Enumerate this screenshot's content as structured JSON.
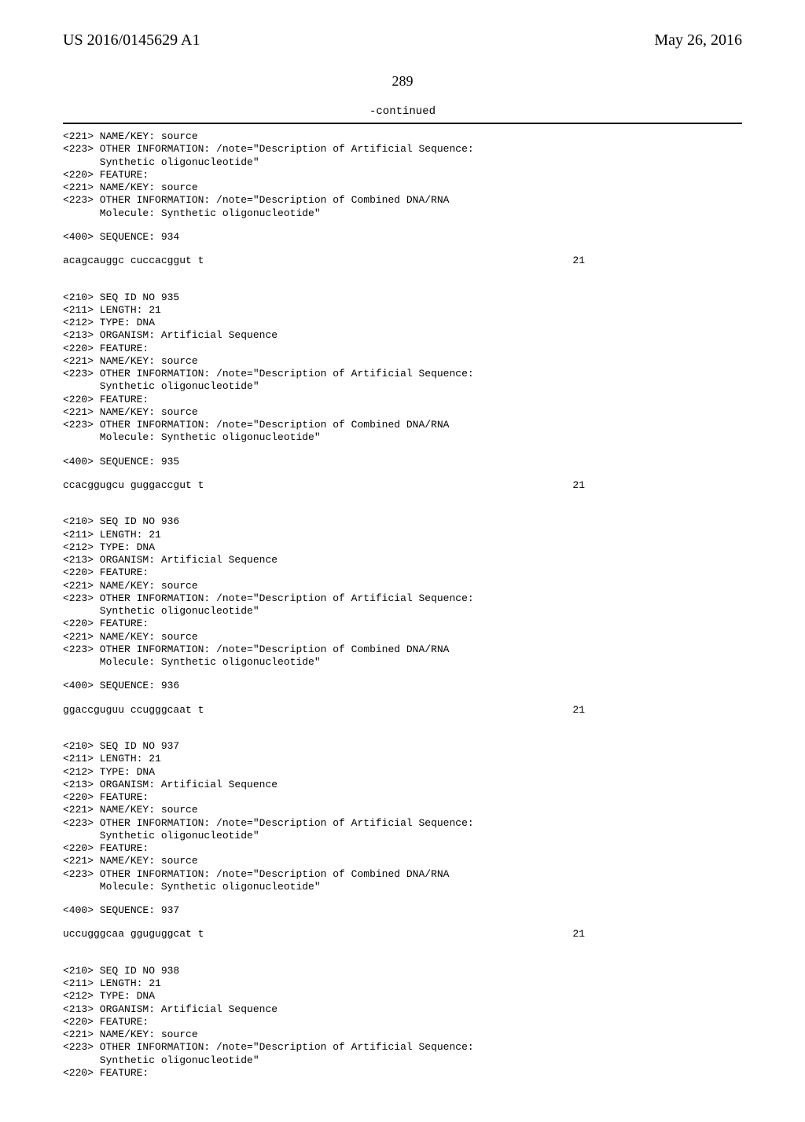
{
  "header": {
    "left": "US 2016/0145629 A1",
    "right": "May 26, 2016"
  },
  "page_number": "289",
  "continued": "-continued",
  "blocks": [
    {
      "lines": [
        "<221> NAME/KEY: source",
        "<223> OTHER INFORMATION: /note=\"Description of Artificial Sequence:",
        "      Synthetic oligonucleotide\"",
        "<220> FEATURE:",
        "<221> NAME/KEY: source",
        "<223> OTHER INFORMATION: /note=\"Description of Combined DNA/RNA",
        "      Molecule: Synthetic oligonucleotide\""
      ]
    },
    {
      "lines": [
        "<400> SEQUENCE: 934"
      ]
    },
    {
      "seq": {
        "text": "acagcauggc cuccacggut t",
        "number": "21"
      }
    },
    {
      "lines": [
        "",
        "<210> SEQ ID NO 935",
        "<211> LENGTH: 21",
        "<212> TYPE: DNA",
        "<213> ORGANISM: Artificial Sequence",
        "<220> FEATURE:",
        "<221> NAME/KEY: source",
        "<223> OTHER INFORMATION: /note=\"Description of Artificial Sequence:",
        "      Synthetic oligonucleotide\"",
        "<220> FEATURE:",
        "<221> NAME/KEY: source",
        "<223> OTHER INFORMATION: /note=\"Description of Combined DNA/RNA",
        "      Molecule: Synthetic oligonucleotide\""
      ]
    },
    {
      "lines": [
        "<400> SEQUENCE: 935"
      ]
    },
    {
      "seq": {
        "text": "ccacggugcu guggaccgut t",
        "number": "21"
      }
    },
    {
      "lines": [
        "",
        "<210> SEQ ID NO 936",
        "<211> LENGTH: 21",
        "<212> TYPE: DNA",
        "<213> ORGANISM: Artificial Sequence",
        "<220> FEATURE:",
        "<221> NAME/KEY: source",
        "<223> OTHER INFORMATION: /note=\"Description of Artificial Sequence:",
        "      Synthetic oligonucleotide\"",
        "<220> FEATURE:",
        "<221> NAME/KEY: source",
        "<223> OTHER INFORMATION: /note=\"Description of Combined DNA/RNA",
        "      Molecule: Synthetic oligonucleotide\""
      ]
    },
    {
      "lines": [
        "<400> SEQUENCE: 936"
      ]
    },
    {
      "seq": {
        "text": "ggaccguguu ccugggcaat t",
        "number": "21"
      }
    },
    {
      "lines": [
        "",
        "<210> SEQ ID NO 937",
        "<211> LENGTH: 21",
        "<212> TYPE: DNA",
        "<213> ORGANISM: Artificial Sequence",
        "<220> FEATURE:",
        "<221> NAME/KEY: source",
        "<223> OTHER INFORMATION: /note=\"Description of Artificial Sequence:",
        "      Synthetic oligonucleotide\"",
        "<220> FEATURE:",
        "<221> NAME/KEY: source",
        "<223> OTHER INFORMATION: /note=\"Description of Combined DNA/RNA",
        "      Molecule: Synthetic oligonucleotide\""
      ]
    },
    {
      "lines": [
        "<400> SEQUENCE: 937"
      ]
    },
    {
      "seq": {
        "text": "uccugggcaa gguguggcat t",
        "number": "21"
      }
    },
    {
      "lines": [
        "",
        "<210> SEQ ID NO 938",
        "<211> LENGTH: 21",
        "<212> TYPE: DNA",
        "<213> ORGANISM: Artificial Sequence",
        "<220> FEATURE:",
        "<221> NAME/KEY: source",
        "<223> OTHER INFORMATION: /note=\"Description of Artificial Sequence:",
        "      Synthetic oligonucleotide\"",
        "<220> FEATURE:"
      ]
    }
  ]
}
